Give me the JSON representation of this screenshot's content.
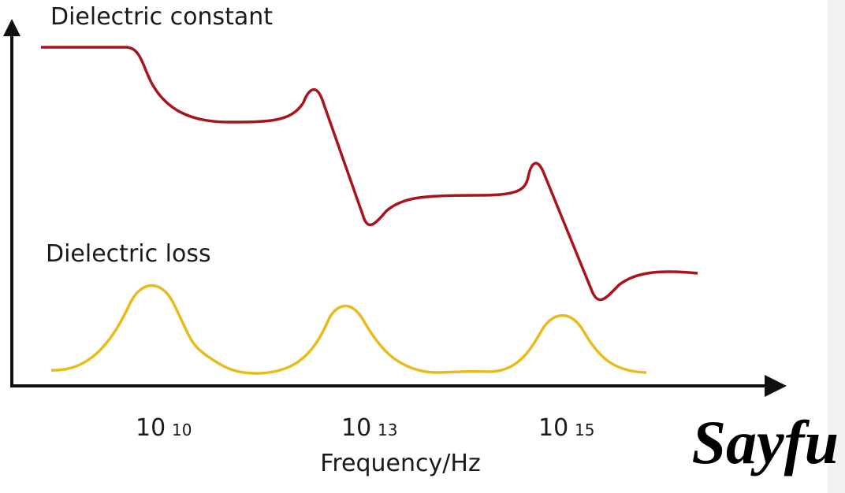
{
  "y_axis_label": "Dielectric constant",
  "loss_label": "Dielectric loss",
  "x_ticks": [
    {
      "base": "10",
      "exponent": "10"
    },
    {
      "base": "10",
      "exponent": "13"
    },
    {
      "base": "10",
      "exponent": "15"
    }
  ],
  "x_axis_label": "Frequency/Hz",
  "watermark": "Sayfu"
}
